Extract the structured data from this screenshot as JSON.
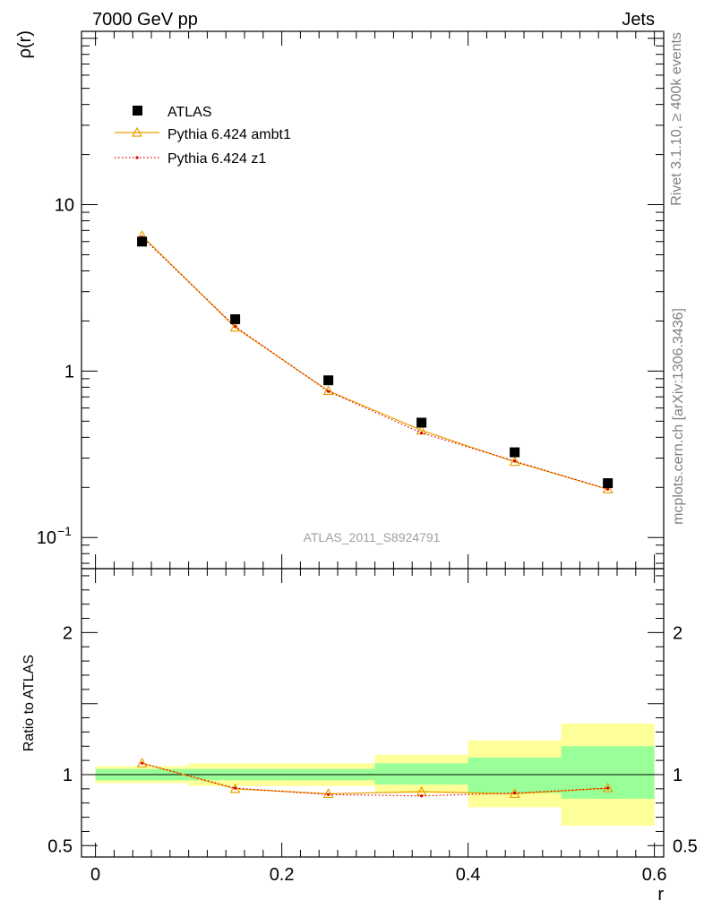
{
  "header": {
    "left": "7000 GeV pp",
    "right": "Jets"
  },
  "side_texts": {
    "rivet": "Rivet 3.1.10, ≥ 400k events",
    "mcplots": "mcplots.cern.ch [arXiv:1306.3436]"
  },
  "chart_data": [
    {
      "type": "scatter",
      "scale": "log",
      "title": "",
      "ylabel": "ρ(r)",
      "xlabel": "",
      "watermark": "ATLAS_2011_S8924791",
      "xlim": [
        -0.015,
        0.61
      ],
      "ylim": [
        0.065,
        110
      ],
      "y_ticks": [
        {
          "v": 10,
          "label": "10"
        },
        {
          "v": 1,
          "label": "1"
        },
        {
          "v": 0.1,
          "label": "10",
          "sup": "−1"
        }
      ],
      "x": [
        0.05,
        0.15,
        0.25,
        0.35,
        0.45,
        0.55
      ],
      "series": [
        {
          "name": "ATLAS",
          "style": "data",
          "color": "#000000",
          "values": [
            6.0,
            2.05,
            0.88,
            0.49,
            0.325,
            0.212
          ]
        },
        {
          "name": "Pythia 6.424 ambt1",
          "style": "triangle-line",
          "color": "#e69f00",
          "values": [
            6.5,
            1.83,
            0.76,
            0.44,
            0.285,
            0.195
          ]
        },
        {
          "name": "Pythia 6.424 z1",
          "style": "dotted",
          "color": "#dd0000",
          "values": [
            6.4,
            1.85,
            0.755,
            0.425,
            0.288,
            0.195
          ]
        }
      ]
    },
    {
      "type": "line",
      "ylabel": "Ratio to ATLAS",
      "xlabel": "r",
      "xlim": [
        -0.015,
        0.61
      ],
      "ylim": [
        0.42,
        2.45
      ],
      "y_ticks": [
        {
          "v": 2,
          "label": "2"
        },
        {
          "v": 1,
          "label": "1"
        },
        {
          "v": 0.5,
          "label": "0.5"
        }
      ],
      "x_ticks": [
        {
          "v": 0,
          "label": "0"
        },
        {
          "v": 0.2,
          "label": "0.2"
        },
        {
          "v": 0.4,
          "label": "0.4"
        },
        {
          "v": 0.6,
          "label": "0.6"
        }
      ],
      "bands": [
        {
          "x0": 0.0,
          "x1": 0.1,
          "stat": [
            0.96,
            1.04
          ],
          "total": [
            0.94,
            1.06
          ]
        },
        {
          "x0": 0.1,
          "x1": 0.2,
          "stat": [
            0.96,
            1.04
          ],
          "total": [
            0.92,
            1.08
          ]
        },
        {
          "x0": 0.2,
          "x1": 0.3,
          "stat": [
            0.96,
            1.04
          ],
          "total": [
            0.92,
            1.08
          ]
        },
        {
          "x0": 0.3,
          "x1": 0.4,
          "stat": [
            0.93,
            1.08
          ],
          "total": [
            0.87,
            1.14
          ]
        },
        {
          "x0": 0.4,
          "x1": 0.5,
          "stat": [
            0.87,
            1.12
          ],
          "total": [
            0.77,
            1.24
          ]
        },
        {
          "x0": 0.5,
          "x1": 0.6,
          "stat": [
            0.83,
            1.2
          ],
          "total": [
            0.64,
            1.36
          ]
        }
      ],
      "x": [
        0.05,
        0.15,
        0.25,
        0.35,
        0.45,
        0.55
      ],
      "series": [
        {
          "name": "Pythia 6.424 ambt1",
          "style": "triangle-line",
          "color": "#e69f00",
          "values": [
            1.08,
            0.9,
            0.865,
            0.88,
            0.865,
            0.905
          ]
        },
        {
          "name": "Pythia 6.424 z1",
          "style": "dotted",
          "color": "#dd0000",
          "values": [
            1.08,
            0.905,
            0.86,
            0.85,
            0.87,
            0.905
          ]
        }
      ]
    }
  ]
}
